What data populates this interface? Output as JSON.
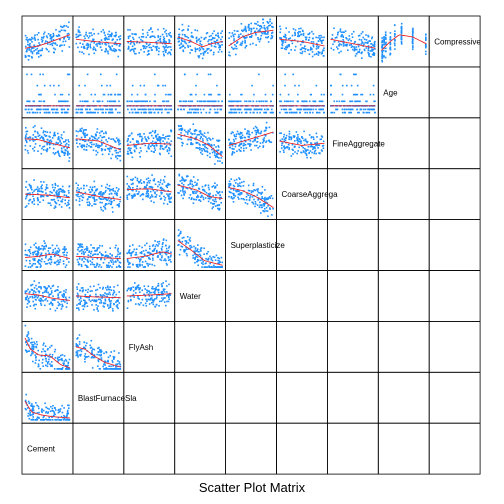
{
  "chart_data": {
    "type": "scatter",
    "title": "Scatter Plot Matrix",
    "variables": [
      "Cement",
      "BlastFurnaceSlag",
      "FlyAsh",
      "Water",
      "Superplasticizer",
      "CoarseAggregate",
      "FineAggregate",
      "Age",
      "CompressiveStrength"
    ],
    "diagonal_labels": [
      "Cement",
      "BlastFurnaceSla",
      "FlyAsh",
      "Water",
      "Superplasticize",
      "CoarseAggrega",
      "FineAggregate",
      "Age",
      "Compressive"
    ],
    "layout": "lower-left triangle of scatter panels with smoother lines; diagonal holds variable names; upper-right panels empty",
    "point_color": "#1E90FF",
    "smooth_color": "#E8272B",
    "grid": false,
    "legend": "none",
    "panels": [
      {
        "row": "BlastFurnaceSlag",
        "col": "Cement",
        "smooth": [
          [
            0,
            0.42
          ],
          [
            0.15,
            0.18
          ],
          [
            0.35,
            0.12
          ],
          [
            0.6,
            0.08
          ],
          [
            0.85,
            0.06
          ],
          [
            1,
            0.05
          ]
        ]
      },
      {
        "row": "FlyAsh",
        "col": "Cement",
        "smooth": [
          [
            0,
            0.7
          ],
          [
            0.12,
            0.45
          ],
          [
            0.3,
            0.32
          ],
          [
            0.55,
            0.3
          ],
          [
            0.8,
            0.1
          ],
          [
            1,
            0.03
          ]
        ]
      },
      {
        "row": "FlyAsh",
        "col": "BlastFurnaceSlag",
        "smooth": [
          [
            0,
            0.5
          ],
          [
            0.2,
            0.45
          ],
          [
            0.4,
            0.3
          ],
          [
            0.65,
            0.15
          ],
          [
            1,
            0.05
          ]
        ]
      },
      {
        "row": "Water",
        "col": "Cement",
        "smooth": [
          [
            0,
            0.55
          ],
          [
            0.3,
            0.52
          ],
          [
            0.6,
            0.45
          ],
          [
            1,
            0.4
          ]
        ]
      },
      {
        "row": "Water",
        "col": "BlastFurnaceSlag",
        "smooth": [
          [
            0,
            0.5
          ],
          [
            0.4,
            0.48
          ],
          [
            1,
            0.46
          ]
        ]
      },
      {
        "row": "Water",
        "col": "FlyAsh",
        "smooth": [
          [
            0,
            0.5
          ],
          [
            0.5,
            0.52
          ],
          [
            1,
            0.55
          ]
        ]
      },
      {
        "row": "Superplasticizer",
        "col": "Cement",
        "smooth": [
          [
            0,
            0.22
          ],
          [
            0.3,
            0.25
          ],
          [
            0.6,
            0.3
          ],
          [
            1,
            0.2
          ]
        ]
      },
      {
        "row": "Superplasticizer",
        "col": "BlastFurnaceSlag",
        "smooth": [
          [
            0,
            0.25
          ],
          [
            0.5,
            0.22
          ],
          [
            1,
            0.2
          ]
        ]
      },
      {
        "row": "Superplasticizer",
        "col": "FlyAsh",
        "smooth": [
          [
            0,
            0.2
          ],
          [
            0.4,
            0.25
          ],
          [
            0.8,
            0.35
          ],
          [
            1,
            0.3
          ]
        ]
      },
      {
        "row": "Superplasticizer",
        "col": "Water",
        "smooth": [
          [
            0,
            0.6
          ],
          [
            0.35,
            0.35
          ],
          [
            0.6,
            0.15
          ],
          [
            1,
            0.05
          ]
        ]
      },
      {
        "row": "CoarseAggregate",
        "col": "Cement",
        "smooth": [
          [
            0,
            0.5
          ],
          [
            0.5,
            0.48
          ],
          [
            1,
            0.42
          ]
        ]
      },
      {
        "row": "CoarseAggregate",
        "col": "BlastFurnaceSlag",
        "smooth": [
          [
            0,
            0.55
          ],
          [
            0.5,
            0.45
          ],
          [
            1,
            0.38
          ]
        ]
      },
      {
        "row": "CoarseAggregate",
        "col": "FlyAsh",
        "smooth": [
          [
            0,
            0.6
          ],
          [
            0.5,
            0.62
          ],
          [
            1,
            0.55
          ]
        ]
      },
      {
        "row": "CoarseAggregate",
        "col": "Water",
        "smooth": [
          [
            0,
            0.7
          ],
          [
            0.4,
            0.6
          ],
          [
            0.7,
            0.45
          ],
          [
            1,
            0.4
          ]
        ]
      },
      {
        "row": "CoarseAggregate",
        "col": "Superplasticizer",
        "smooth": [
          [
            0,
            0.65
          ],
          [
            0.3,
            0.58
          ],
          [
            0.6,
            0.45
          ],
          [
            1,
            0.2
          ]
        ]
      },
      {
        "row": "FineAggregate",
        "col": "Cement",
        "smooth": [
          [
            0,
            0.6
          ],
          [
            0.3,
            0.58
          ],
          [
            0.6,
            0.5
          ],
          [
            1,
            0.4
          ]
        ]
      },
      {
        "row": "FineAggregate",
        "col": "BlastFurnaceSlag",
        "smooth": [
          [
            0,
            0.6
          ],
          [
            0.5,
            0.55
          ],
          [
            1,
            0.35
          ]
        ]
      },
      {
        "row": "FineAggregate",
        "col": "FlyAsh",
        "smooth": [
          [
            0,
            0.45
          ],
          [
            0.5,
            0.5
          ],
          [
            1,
            0.48
          ]
        ]
      },
      {
        "row": "FineAggregate",
        "col": "Water",
        "smooth": [
          [
            0,
            0.7
          ],
          [
            0.4,
            0.6
          ],
          [
            0.7,
            0.45
          ],
          [
            1,
            0.2
          ]
        ]
      },
      {
        "row": "FineAggregate",
        "col": "Superplasticizer",
        "smooth": [
          [
            0,
            0.45
          ],
          [
            0.5,
            0.6
          ],
          [
            1,
            0.75
          ]
        ]
      },
      {
        "row": "FineAggregate",
        "col": "CoarseAggregate",
        "smooth": [
          [
            0,
            0.55
          ],
          [
            0.5,
            0.45
          ],
          [
            1,
            0.5
          ]
        ]
      },
      {
        "row": "Age",
        "col": "Cement",
        "smooth": [
          [
            0,
            0.2
          ],
          [
            1,
            0.2
          ]
        ]
      },
      {
        "row": "Age",
        "col": "BlastFurnaceSlag",
        "smooth": [
          [
            0,
            0.2
          ],
          [
            1,
            0.2
          ]
        ]
      },
      {
        "row": "Age",
        "col": "FlyAsh",
        "smooth": [
          [
            0,
            0.2
          ],
          [
            1,
            0.2
          ]
        ]
      },
      {
        "row": "Age",
        "col": "Water",
        "smooth": [
          [
            0,
            0.2
          ],
          [
            1,
            0.2
          ]
        ]
      },
      {
        "row": "Age",
        "col": "Superplasticizer",
        "smooth": [
          [
            0,
            0.2
          ],
          [
            1,
            0.2
          ]
        ]
      },
      {
        "row": "Age",
        "col": "CoarseAggregate",
        "smooth": [
          [
            0,
            0.2
          ],
          [
            1,
            0.2
          ]
        ]
      },
      {
        "row": "Age",
        "col": "FineAggregate",
        "smooth": [
          [
            0,
            0.2
          ],
          [
            1,
            0.2
          ]
        ]
      },
      {
        "row": "CompressiveStrength",
        "col": "Cement",
        "smooth": [
          [
            0,
            0.35
          ],
          [
            0.3,
            0.4
          ],
          [
            0.6,
            0.5
          ],
          [
            1,
            0.65
          ]
        ]
      },
      {
        "row": "CompressiveStrength",
        "col": "BlastFurnaceSlag",
        "smooth": [
          [
            0,
            0.55
          ],
          [
            0.4,
            0.5
          ],
          [
            1,
            0.45
          ]
        ]
      },
      {
        "row": "CompressiveStrength",
        "col": "FlyAsh",
        "smooth": [
          [
            0,
            0.5
          ],
          [
            0.5,
            0.48
          ],
          [
            1,
            0.45
          ]
        ]
      },
      {
        "row": "CompressiveStrength",
        "col": "Water",
        "smooth": [
          [
            0,
            0.6
          ],
          [
            0.3,
            0.5
          ],
          [
            0.55,
            0.38
          ],
          [
            0.75,
            0.45
          ],
          [
            1,
            0.5
          ]
        ]
      },
      {
        "row": "CompressiveStrength",
        "col": "Superplasticizer",
        "smooth": [
          [
            0,
            0.4
          ],
          [
            0.3,
            0.6
          ],
          [
            0.6,
            0.7
          ],
          [
            1,
            0.75
          ]
        ]
      },
      {
        "row": "CompressiveStrength",
        "col": "CoarseAggregate",
        "smooth": [
          [
            0,
            0.55
          ],
          [
            0.5,
            0.5
          ],
          [
            1,
            0.4
          ]
        ]
      },
      {
        "row": "CompressiveStrength",
        "col": "FineAggregate",
        "smooth": [
          [
            0,
            0.55
          ],
          [
            0.5,
            0.45
          ],
          [
            1,
            0.35
          ]
        ]
      },
      {
        "row": "CompressiveStrength",
        "col": "Age",
        "smooth": [
          [
            0,
            0.3
          ],
          [
            0.2,
            0.5
          ],
          [
            0.4,
            0.65
          ],
          [
            0.7,
            0.6
          ],
          [
            1,
            0.45
          ]
        ]
      }
    ]
  }
}
